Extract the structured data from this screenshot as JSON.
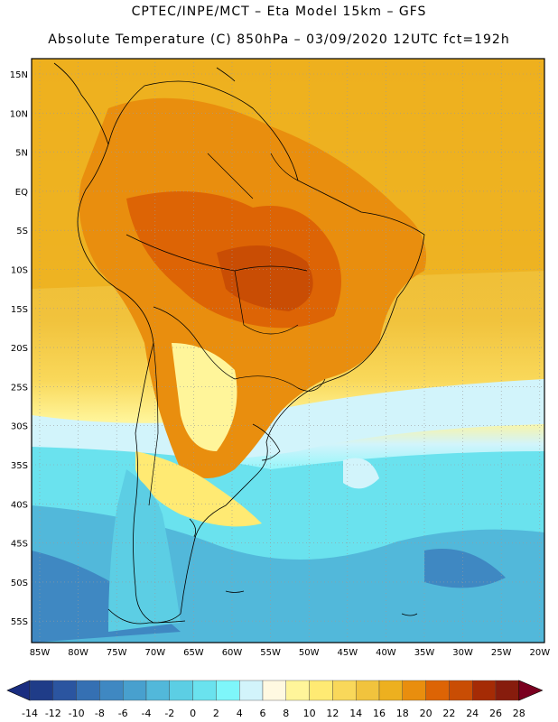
{
  "header": {
    "line1": "CPTEC/INPE/MCT –  Eta Model 15km – GFS",
    "line2": "Absolute Temperature (C) 850hPa – 03/09/2020 12UTC fct=192h"
  },
  "map": {
    "lat_labels": [
      "15N",
      "10N",
      "5N",
      "EQ",
      "5S",
      "10S",
      "15S",
      "20S",
      "25S",
      "30S",
      "35S",
      "40S",
      "45S",
      "50S",
      "55S"
    ],
    "lon_labels": [
      "85W",
      "80W",
      "75W",
      "70W",
      "65W",
      "60W",
      "55W",
      "50W",
      "45W",
      "40W",
      "35W",
      "30W",
      "25W",
      "20W"
    ],
    "grid": true
  },
  "colorbar": {
    "ticks": [
      "-14",
      "-12",
      "-10",
      "-8",
      "-6",
      "-4",
      "-2",
      "0",
      "2",
      "4",
      "6",
      "8",
      "10",
      "12",
      "14",
      "16",
      "18",
      "20",
      "22",
      "24",
      "26",
      "28"
    ],
    "colors": [
      "#8B0000",
      "#1F3C88",
      "#2B55A0",
      "#3570B3",
      "#3F88C2",
      "#48A0CE",
      "#52B8DA",
      "#5CCEE4",
      "#6AE2EE",
      "#7EF6FA",
      "#D2F4FB",
      "#FFF9E1",
      "#FFF59A",
      "#FFEA73",
      "#F9D85A",
      "#F1C33D",
      "#EDB01F",
      "#E98E0E",
      "#DD6405",
      "#C94D04",
      "#A52B05",
      "#871C0D",
      "#8B0026"
    ],
    "end_left": "#1a2d80",
    "end_right": "#7a0020"
  }
}
